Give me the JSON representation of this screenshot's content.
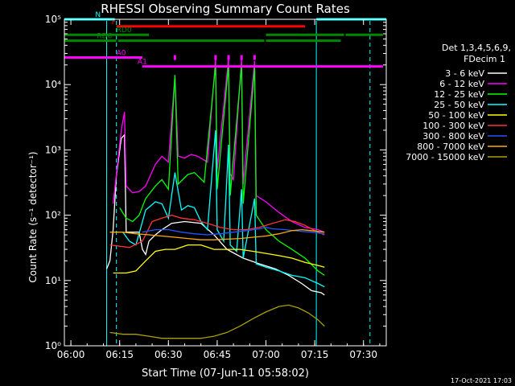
{
  "chart_data": {
    "type": "line",
    "title": "RHESSI Observing Summary Count Rates",
    "xlabel": "Start Time (07-Jun-11 05:58:02)",
    "ylabel": "Count Rate (s⁻¹ detector⁻¹)",
    "x_unit": "minutes since 06:00",
    "xlim": [
      -2,
      97
    ],
    "ylim": [
      1,
      100000
    ],
    "y_scale": "log",
    "x_ticks": [
      {
        "t": 0,
        "label": "06:00"
      },
      {
        "t": 15,
        "label": "06:15"
      },
      {
        "t": 30,
        "label": "06:30"
      },
      {
        "t": 45,
        "label": "06:45"
      },
      {
        "t": 60,
        "label": "07:00"
      },
      {
        "t": 75,
        "label": "07:15"
      },
      {
        "t": 90,
        "label": "07:30"
      }
    ],
    "y_ticks": [
      {
        "v": 1,
        "label": "10⁰"
      },
      {
        "v": 10,
        "label": "10¹"
      },
      {
        "v": 100,
        "label": "10²"
      },
      {
        "v": 1000,
        "label": "10³"
      },
      {
        "v": 10000,
        "label": "10⁴"
      },
      {
        "v": 100000,
        "label": "10⁵"
      }
    ],
    "legend_header": [
      "Det 1,3,4,5,6,9,",
      "FDecim 1"
    ],
    "legend_position": "right",
    "series": [
      {
        "name": "3 - 6 keV",
        "color": "#ffffff",
        "points": [
          [
            11,
            15
          ],
          [
            12,
            20
          ],
          [
            13,
            60
          ],
          [
            14,
            400
          ],
          [
            15.5,
            1500
          ],
          [
            16.5,
            1700
          ],
          [
            17,
            55
          ],
          [
            21,
            55
          ],
          [
            22,
            30
          ],
          [
            23,
            25
          ],
          [
            24,
            40
          ],
          [
            26,
            50
          ],
          [
            28,
            60
          ],
          [
            31,
            75
          ],
          [
            35,
            80
          ],
          [
            40,
            75
          ],
          [
            44,
            50
          ],
          [
            48,
            30
          ],
          [
            53,
            22
          ],
          [
            58,
            18
          ],
          [
            63,
            15
          ],
          [
            67,
            12
          ],
          [
            71,
            9
          ],
          [
            74,
            7
          ],
          [
            77,
            6.5
          ],
          [
            78,
            6
          ]
        ]
      },
      {
        "name": "6 - 12 keV",
        "color": "#ff00ff",
        "points": [
          [
            13,
            150
          ],
          [
            15.5,
            2000
          ],
          [
            16.5,
            3800
          ],
          [
            17,
            280
          ],
          [
            19,
            220
          ],
          [
            21,
            230
          ],
          [
            23,
            280
          ],
          [
            26,
            600
          ],
          [
            28,
            800
          ],
          [
            30,
            650
          ],
          [
            32,
            14000
          ],
          [
            33,
            800
          ],
          [
            35,
            750
          ],
          [
            37,
            850
          ],
          [
            39,
            800
          ],
          [
            42,
            650
          ],
          [
            44.5,
            25000
          ],
          [
            45,
            500
          ],
          [
            48.5,
            25000
          ],
          [
            49,
            430
          ],
          [
            50,
            350
          ],
          [
            52.5,
            25000
          ],
          [
            53,
            300
          ],
          [
            56.5,
            23000
          ],
          [
            57,
            200
          ],
          [
            60,
            160
          ],
          [
            64,
            110
          ],
          [
            68,
            80
          ],
          [
            72,
            65
          ],
          [
            76,
            60
          ],
          [
            78,
            55
          ]
        ]
      },
      {
        "name": "12 - 25 keV",
        "color": "#00ff00",
        "points": [
          [
            15,
            130
          ],
          [
            17,
            90
          ],
          [
            19,
            80
          ],
          [
            21,
            100
          ],
          [
            23,
            180
          ],
          [
            26,
            280
          ],
          [
            28,
            350
          ],
          [
            30,
            250
          ],
          [
            32,
            14000
          ],
          [
            33,
            300
          ],
          [
            36,
            420
          ],
          [
            38,
            450
          ],
          [
            41,
            320
          ],
          [
            44.5,
            20000
          ],
          [
            45,
            250
          ],
          [
            48.5,
            20000
          ],
          [
            49,
            200
          ],
          [
            52.5,
            20000
          ],
          [
            53,
            150
          ],
          [
            56.5,
            18000
          ],
          [
            57,
            100
          ],
          [
            60,
            60
          ],
          [
            64,
            40
          ],
          [
            68,
            30
          ],
          [
            72,
            22
          ],
          [
            76,
            14
          ],
          [
            78,
            12
          ]
        ]
      },
      {
        "name": "25 - 50 keV",
        "color": "#00ffff",
        "points": [
          [
            16,
            55
          ],
          [
            18,
            40
          ],
          [
            20,
            35
          ],
          [
            23,
            120
          ],
          [
            26,
            160
          ],
          [
            28,
            150
          ],
          [
            30,
            90
          ],
          [
            32,
            450
          ],
          [
            34,
            120
          ],
          [
            36,
            140
          ],
          [
            38,
            130
          ],
          [
            40,
            80
          ],
          [
            42,
            60
          ],
          [
            44.5,
            2000
          ],
          [
            45,
            60
          ],
          [
            47,
            40
          ],
          [
            48.5,
            1200
          ],
          [
            49,
            35
          ],
          [
            51,
            28
          ],
          [
            52.5,
            250
          ],
          [
            53,
            22
          ],
          [
            56.5,
            180
          ],
          [
            57,
            18
          ],
          [
            60,
            16
          ],
          [
            64,
            14
          ],
          [
            68,
            12
          ],
          [
            72,
            11
          ],
          [
            76,
            9
          ],
          [
            78,
            8
          ]
        ]
      },
      {
        "name": "50 - 100 keV",
        "color": "#ffff00",
        "points": [
          [
            13,
            13
          ],
          [
            17,
            13
          ],
          [
            20,
            14
          ],
          [
            23,
            20
          ],
          [
            26,
            28
          ],
          [
            29,
            30
          ],
          [
            32,
            30
          ],
          [
            36,
            35
          ],
          [
            40,
            35
          ],
          [
            44,
            30
          ],
          [
            48,
            30
          ],
          [
            52,
            30
          ],
          [
            56,
            28
          ],
          [
            60,
            26
          ],
          [
            64,
            24
          ],
          [
            68,
            22
          ],
          [
            72,
            19
          ],
          [
            76,
            17
          ],
          [
            78,
            16
          ]
        ]
      },
      {
        "name": "100 - 300 keV",
        "color": "#ff3333",
        "points": [
          [
            12,
            35
          ],
          [
            16,
            33
          ],
          [
            18,
            32
          ],
          [
            22,
            40
          ],
          [
            25,
            80
          ],
          [
            28,
            90
          ],
          [
            31,
            100
          ],
          [
            34,
            90
          ],
          [
            38,
            85
          ],
          [
            42,
            75
          ],
          [
            46,
            65
          ],
          [
            50,
            60
          ],
          [
            54,
            60
          ],
          [
            58,
            65
          ],
          [
            62,
            75
          ],
          [
            66,
            85
          ],
          [
            69,
            80
          ],
          [
            72,
            70
          ],
          [
            75,
            58
          ],
          [
            78,
            50
          ]
        ]
      },
      {
        "name": "300 - 800 keV",
        "color": "#2255ff",
        "points": [
          [
            22,
            55
          ],
          [
            26,
            60
          ],
          [
            30,
            60
          ],
          [
            34,
            55
          ],
          [
            38,
            52
          ],
          [
            42,
            50
          ],
          [
            46,
            52
          ],
          [
            50,
            55
          ],
          [
            54,
            58
          ],
          [
            58,
            62
          ],
          [
            60,
            65
          ],
          [
            62,
            62
          ],
          [
            66,
            60
          ],
          [
            70,
            57
          ],
          [
            74,
            55
          ],
          [
            78,
            52
          ]
        ]
      },
      {
        "name": "800 - 7000 keV",
        "color": "#ffaa00",
        "points": [
          [
            12,
            55
          ],
          [
            16,
            55
          ],
          [
            20,
            52
          ],
          [
            24,
            50
          ],
          [
            28,
            48
          ],
          [
            32,
            46
          ],
          [
            36,
            44
          ],
          [
            40,
            42
          ],
          [
            44,
            42
          ],
          [
            48,
            43
          ],
          [
            52,
            44
          ],
          [
            56,
            46
          ],
          [
            60,
            48
          ],
          [
            64,
            52
          ],
          [
            68,
            58
          ],
          [
            71,
            60
          ],
          [
            74,
            58
          ],
          [
            78,
            55
          ]
        ]
      },
      {
        "name": "7000 - 15000 keV",
        "color": "#aaa000",
        "points": [
          [
            12,
            1.6
          ],
          [
            16,
            1.5
          ],
          [
            20,
            1.5
          ],
          [
            24,
            1.4
          ],
          [
            28,
            1.3
          ],
          [
            32,
            1.3
          ],
          [
            36,
            1.3
          ],
          [
            40,
            1.3
          ],
          [
            44,
            1.4
          ],
          [
            48,
            1.6
          ],
          [
            52,
            2.0
          ],
          [
            56,
            2.6
          ],
          [
            60,
            3.3
          ],
          [
            64,
            4.0
          ],
          [
            67,
            4.2
          ],
          [
            70,
            3.8
          ],
          [
            73,
            3.2
          ],
          [
            76,
            2.5
          ],
          [
            78,
            2.0
          ]
        ]
      }
    ],
    "state_bars": [
      {
        "name": "N",
        "color": "#00ffff",
        "row": 100000,
        "segments": [
          [
            -2,
            13.5
          ],
          [
            75.5,
            97
          ]
        ]
      },
      {
        "name": "F",
        "color": "#ff0000",
        "row": 78000,
        "segments": [
          [
            14,
            72
          ]
        ]
      },
      {
        "name": "RD0",
        "color": "#008800",
        "row": 58000,
        "segments": [
          [
            -2,
            24
          ],
          [
            60,
            84
          ],
          [
            84.5,
            96
          ]
        ]
      },
      {
        "name": "RD6",
        "color": "#008800",
        "row": 47000,
        "segments": [
          [
            -2,
            14
          ],
          [
            14.5,
            59.5
          ],
          [
            60,
            83
          ]
        ]
      },
      {
        "name": "A0",
        "color": "#ff00ff",
        "row": 26000,
        "segments": [
          [
            -2,
            22
          ]
        ]
      },
      {
        "name": "A1",
        "color": "#ff00ff",
        "row": 19000,
        "segments": [
          [
            22,
            96
          ]
        ]
      }
    ],
    "attenuator_ticks": [
      32,
      44.5,
      48.5,
      52.5,
      56.5
    ],
    "night_lines": [
      [
        11,
        "solid"
      ],
      [
        14,
        "dashed"
      ],
      [
        75.5,
        "solid"
      ],
      [
        92,
        "dashed"
      ]
    ],
    "footer_date": "17-Oct-2021 17:03"
  }
}
